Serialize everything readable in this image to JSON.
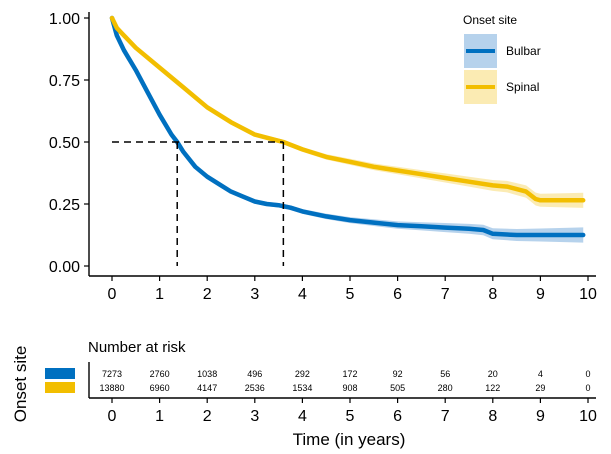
{
  "chart_data": {
    "type": "line",
    "xlabel": "Time (in years)",
    "ylabel": "",
    "xlim": [
      0,
      10
    ],
    "ylim": [
      0,
      1
    ],
    "x_ticks": [
      "0",
      "1",
      "2",
      "3",
      "4",
      "5",
      "6",
      "7",
      "8",
      "9",
      "10"
    ],
    "y_ticks": [
      "0.00",
      "0.25",
      "0.50",
      "0.75",
      "1.00"
    ],
    "legend": {
      "title": "Onset site",
      "position": "top-right"
    },
    "series": [
      {
        "name": "Bulbar",
        "color": "#0070C0",
        "band_color": "#9DC3E6",
        "x": [
          0,
          0.1,
          0.25,
          0.5,
          0.75,
          1.0,
          1.25,
          1.37,
          1.5,
          1.75,
          2.0,
          2.25,
          2.5,
          2.75,
          3.0,
          3.25,
          3.5,
          3.75,
          4.0,
          4.5,
          5.0,
          5.5,
          6.0,
          6.5,
          7.0,
          7.5,
          7.8,
          8.0,
          8.5,
          9.0,
          9.5,
          9.9
        ],
        "values": [
          1.0,
          0.93,
          0.87,
          0.79,
          0.7,
          0.61,
          0.53,
          0.5,
          0.46,
          0.4,
          0.36,
          0.33,
          0.3,
          0.28,
          0.26,
          0.25,
          0.245,
          0.235,
          0.22,
          0.2,
          0.185,
          0.175,
          0.165,
          0.16,
          0.155,
          0.15,
          0.145,
          0.13,
          0.125,
          0.125,
          0.125,
          0.125
        ]
      },
      {
        "name": "Spinal",
        "color": "#F2BE00",
        "band_color": "#F9E49A",
        "x": [
          0,
          0.1,
          0.25,
          0.5,
          1.0,
          1.5,
          2.0,
          2.5,
          3.0,
          3.5,
          3.6,
          4.0,
          4.5,
          5.0,
          5.5,
          6.0,
          6.5,
          7.0,
          7.5,
          8.0,
          8.3,
          8.5,
          8.7,
          8.9,
          9.0,
          9.5,
          9.9
        ],
        "values": [
          1.0,
          0.96,
          0.93,
          0.88,
          0.8,
          0.72,
          0.64,
          0.58,
          0.53,
          0.505,
          0.5,
          0.47,
          0.44,
          0.42,
          0.4,
          0.385,
          0.37,
          0.355,
          0.34,
          0.325,
          0.32,
          0.31,
          0.3,
          0.27,
          0.265,
          0.265,
          0.265
        ]
      }
    ],
    "median_lines": {
      "y": 0.5,
      "x": [
        1.37,
        3.6
      ]
    },
    "risk_table": {
      "title": "Number at risk",
      "ylabel": "Onset site",
      "times": [
        "0",
        "1",
        "2",
        "3",
        "4",
        "5",
        "6",
        "7",
        "8",
        "9",
        "10"
      ],
      "rows": [
        {
          "name": "Bulbar",
          "color": "#0070C0",
          "values": [
            "7273",
            "2760",
            "1038",
            "496",
            "292",
            "172",
            "92",
            "56",
            "20",
            "4",
            "0"
          ]
        },
        {
          "name": "Spinal",
          "color": "#F2BE00",
          "values": [
            "13880",
            "6960",
            "4147",
            "2536",
            "1534",
            "908",
            "505",
            "280",
            "122",
            "29",
            "0"
          ]
        }
      ]
    }
  }
}
